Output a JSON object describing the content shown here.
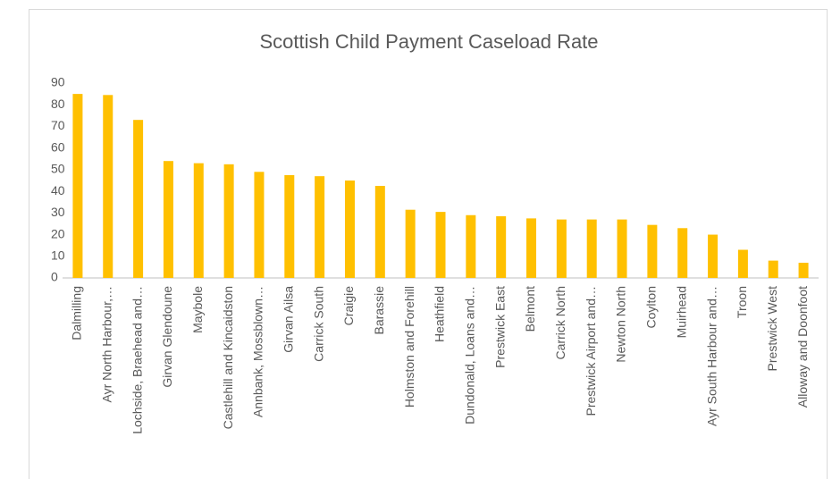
{
  "chart_data": {
    "type": "bar",
    "title": "Scottish Child Payment Caseload Rate",
    "categories": [
      "Dalmilling",
      "Ayr North Harbour,…",
      "Lochside, Braehead and…",
      "Girvan Glendoune",
      "Maybole",
      "Castlehill and Kincaidston",
      "Annbank, Mossblown…",
      "Girvan Ailsa",
      "Carrick South",
      "Craigie",
      "Barassie",
      "Holmston and Forehill",
      "Heathfield",
      "Dundonald, Loans and…",
      "Prestwick East",
      "Belmont",
      "Carrick North",
      "Prestwick Airport and…",
      "Newton North",
      "Coylton",
      "Muirhead",
      "Ayr South Harbour and…",
      "Troon",
      "Prestwick West",
      "Alloway and Doonfoot"
    ],
    "values": [
      85,
      84.5,
      73,
      54,
      53,
      52.5,
      49,
      47.5,
      47,
      45,
      42.5,
      31.5,
      30.5,
      29,
      28.5,
      27.5,
      27,
      27,
      27,
      24.5,
      23,
      20,
      13,
      8,
      7
    ],
    "color": "#ffc000",
    "ylim": [
      0,
      90
    ],
    "yticks": [
      0,
      10,
      20,
      30,
      40,
      50,
      60,
      70,
      80,
      90
    ],
    "grid": false
  }
}
